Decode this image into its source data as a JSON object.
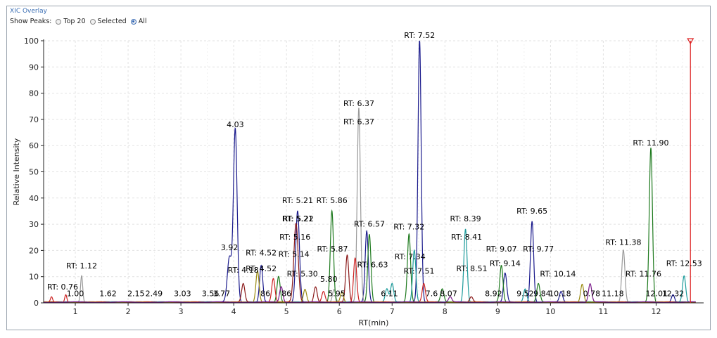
{
  "window": {
    "title": "XIC Overlay"
  },
  "show_peaks": {
    "label": "Show Peaks:",
    "options": [
      "Top 20",
      "Selected",
      "All"
    ],
    "selected": "All"
  },
  "colors": {
    "navy": "#1a1a8c",
    "grey": "#9a9a9a",
    "green": "#1e7a1e",
    "teal": "#1c9b9b",
    "darkred": "#8b1a1a",
    "red": "#cc2222",
    "olive": "#9a8a10",
    "purple": "#7a1a8a",
    "steel": "#5a86b8",
    "axis": "#222222",
    "grid": "#e2e2e2",
    "marker": "#dd2222"
  },
  "chart_data": {
    "type": "line",
    "xlabel": "RT(min)",
    "ylabel": "Relative Intensity",
    "xlim": [
      0.4,
      12.9
    ],
    "ylim": [
      0,
      100
    ],
    "xticks": [
      1,
      2,
      3,
      4,
      5,
      6,
      7,
      8,
      9,
      10,
      11,
      12
    ],
    "yticks": [
      0,
      10,
      20,
      30,
      40,
      50,
      60,
      70,
      80,
      90,
      100
    ],
    "grid": "dashed",
    "marker_rt": 12.65,
    "series": [
      {
        "color": "navy",
        "peaks": [
          [
            4.03,
            66,
            0.035
          ],
          [
            7.52,
            100,
            0.03
          ],
          [
            5.21,
            35,
            0.035
          ],
          [
            9.65,
            31,
            0.03
          ],
          [
            3.92,
            17,
            0.04
          ],
          [
            4.52,
            14,
            0.03
          ],
          [
            6.52,
            27,
            0.03
          ],
          [
            9.14,
            11,
            0.03
          ],
          [
            10.2,
            4,
            0.03
          ],
          [
            12.32,
            3,
            0.03
          ]
        ]
      },
      {
        "color": "grey",
        "peaks": [
          [
            6.37,
            74,
            0.03
          ],
          [
            11.38,
            20,
            0.03
          ],
          [
            1.12,
            10,
            0.02
          ],
          [
            5.9,
            5,
            0.03
          ]
        ]
      },
      {
        "color": "green",
        "peaks": [
          [
            5.86,
            35,
            0.03
          ],
          [
            11.9,
            59,
            0.03
          ],
          [
            7.32,
            26,
            0.03
          ],
          [
            6.57,
            26,
            0.03
          ],
          [
            9.07,
            14,
            0.03
          ],
          [
            4.85,
            10,
            0.03
          ],
          [
            9.77,
            7,
            0.03
          ],
          [
            7.95,
            5,
            0.03
          ]
        ]
      },
      {
        "color": "teal",
        "peaks": [
          [
            8.39,
            28,
            0.03
          ],
          [
            7.42,
            20,
            0.03
          ],
          [
            12.53,
            10,
            0.03
          ],
          [
            7.0,
            7,
            0.03
          ],
          [
            9.52,
            5,
            0.03
          ],
          [
            6.9,
            5,
            0.03
          ]
        ]
      },
      {
        "color": "darkred",
        "peaks": [
          [
            5.18,
            30,
            0.04
          ],
          [
            6.15,
            18,
            0.03
          ],
          [
            4.18,
            7,
            0.03
          ],
          [
            5.55,
            6,
            0.03
          ],
          [
            8.5,
            2,
            0.03
          ]
        ]
      },
      {
        "color": "red",
        "peaks": [
          [
            6.3,
            17,
            0.03
          ],
          [
            0.55,
            2,
            0.02
          ],
          [
            0.82,
            3,
            0.02
          ],
          [
            4.75,
            9,
            0.03
          ],
          [
            7.6,
            7,
            0.03
          ],
          [
            5.7,
            4,
            0.03
          ]
        ]
      },
      {
        "color": "olive",
        "peaks": [
          [
            4.45,
            12,
            0.03
          ],
          [
            10.6,
            7,
            0.03
          ],
          [
            5.35,
            5,
            0.03
          ],
          [
            6.05,
            4,
            0.03
          ]
        ]
      },
      {
        "color": "purple",
        "peaks": [
          [
            10.75,
            7,
            0.03
          ],
          [
            4.9,
            6,
            0.03
          ],
          [
            8.1,
            2,
            0.03
          ]
        ]
      }
    ],
    "annotations": [
      {
        "text": "RT: 7.52",
        "rt": 7.52,
        "y": 100
      },
      {
        "text": "4.03",
        "rt": 4.03,
        "y": 66
      },
      {
        "text": "RT: 6.37",
        "rt": 6.37,
        "y": 74
      },
      {
        "text": "RT: 6.37",
        "rt": 6.37,
        "y": 67
      },
      {
        "text": "RT: 11.90",
        "rt": 11.9,
        "y": 59
      },
      {
        "text": "RT: 5.21",
        "rt": 5.21,
        "y": 37
      },
      {
        "text": "RT: 5.86",
        "rt": 5.86,
        "y": 37
      },
      {
        "text": "RT: 5.21",
        "rt": 5.21,
        "y": 30
      },
      {
        "text": "RT: 5.22",
        "rt": 5.22,
        "y": 30
      },
      {
        "text": "RT: 9.65",
        "rt": 9.65,
        "y": 33
      },
      {
        "text": "RT: 8.39",
        "rt": 8.39,
        "y": 30
      },
      {
        "text": "RT: 6.57",
        "rt": 6.57,
        "y": 28
      },
      {
        "text": "RT: 7.32",
        "rt": 7.32,
        "y": 27
      },
      {
        "text": "RT: 5.16",
        "rt": 5.16,
        "y": 23
      },
      {
        "text": "RT: 8.41",
        "rt": 8.41,
        "y": 23
      },
      {
        "text": "RT: 11.38",
        "rt": 11.38,
        "y": 21
      },
      {
        "text": "3.92",
        "rt": 3.92,
        "y": 19
      },
      {
        "text": "RT: 5.87",
        "rt": 5.87,
        "y": 18.5
      },
      {
        "text": "RT: 9.07",
        "rt": 9.07,
        "y": 18.5
      },
      {
        "text": "RT: 9.77",
        "rt": 9.77,
        "y": 18.5
      },
      {
        "text": "RT: 4.52",
        "rt": 4.52,
        "y": 17
      },
      {
        "text": "RT: 5.14",
        "rt": 5.14,
        "y": 16.5
      },
      {
        "text": "RT: 7.34",
        "rt": 7.34,
        "y": 15.5
      },
      {
        "text": "RT: 1.12",
        "rt": 1.12,
        "y": 12
      },
      {
        "text": "RT: 9.14",
        "rt": 9.14,
        "y": 13
      },
      {
        "text": "RT: 12.53",
        "rt": 12.53,
        "y": 13
      },
      {
        "text": "RT: 6.63",
        "rt": 6.63,
        "y": 12.5
      },
      {
        "text": "RT: 4.52",
        "rt": 4.52,
        "y": 11
      },
      {
        "text": "RT: 4.18",
        "rt": 4.18,
        "y": 10.5
      },
      {
        "text": "RT: 7.51",
        "rt": 7.51,
        "y": 10
      },
      {
        "text": "RT: 8.51",
        "rt": 8.51,
        "y": 11
      },
      {
        "text": "RT: 5.30",
        "rt": 5.3,
        "y": 9
      },
      {
        "text": "RT: 10.14",
        "rt": 10.14,
        "y": 9
      },
      {
        "text": "RT: 11.76",
        "rt": 11.76,
        "y": 9
      },
      {
        "text": "5.80",
        "rt": 5.8,
        "y": 7
      },
      {
        "text": "RT: 0.76",
        "rt": 0.76,
        "y": 4
      },
      {
        "text": "1.00",
        "rt": 1.0,
        "y": 1.5
      },
      {
        "text": "1.62",
        "rt": 1.62,
        "y": 1.5
      },
      {
        "text": "2.15",
        "rt": 2.15,
        "y": 1.5
      },
      {
        "text": "2.49",
        "rt": 2.49,
        "y": 1.5
      },
      {
        "text": "3.03",
        "rt": 3.03,
        "y": 1.5
      },
      {
        "text": "3.56",
        "rt": 3.56,
        "y": 1.5
      },
      {
        "text": "3.77",
        "rt": 3.77,
        "y": 1.5
      },
      {
        "text": "86",
        "rt": 4.6,
        "y": 1.5
      },
      {
        "text": "86",
        "rt": 5.0,
        "y": 1.5
      },
      {
        "text": "5.95",
        "rt": 5.95,
        "y": 1.5
      },
      {
        "text": "6.11",
        "rt": 6.95,
        "y": 1.5
      },
      {
        "text": "7.6",
        "rt": 7.75,
        "y": 1.5
      },
      {
        "text": "8.07",
        "rt": 8.07,
        "y": 1.5
      },
      {
        "text": "8.92",
        "rt": 8.92,
        "y": 1.5
      },
      {
        "text": "9.52",
        "rt": 9.52,
        "y": 1.5
      },
      {
        "text": "9.84",
        "rt": 9.84,
        "y": 1.5
      },
      {
        "text": "10.18",
        "rt": 10.18,
        "y": 1.5
      },
      {
        "text": "0.78",
        "rt": 10.78,
        "y": 1.5
      },
      {
        "text": "11.18",
        "rt": 11.18,
        "y": 1.5
      },
      {
        "text": "12.01",
        "rt": 12.01,
        "y": 1.5
      },
      {
        "text": "12.32",
        "rt": 12.32,
        "y": 1.5
      }
    ]
  }
}
